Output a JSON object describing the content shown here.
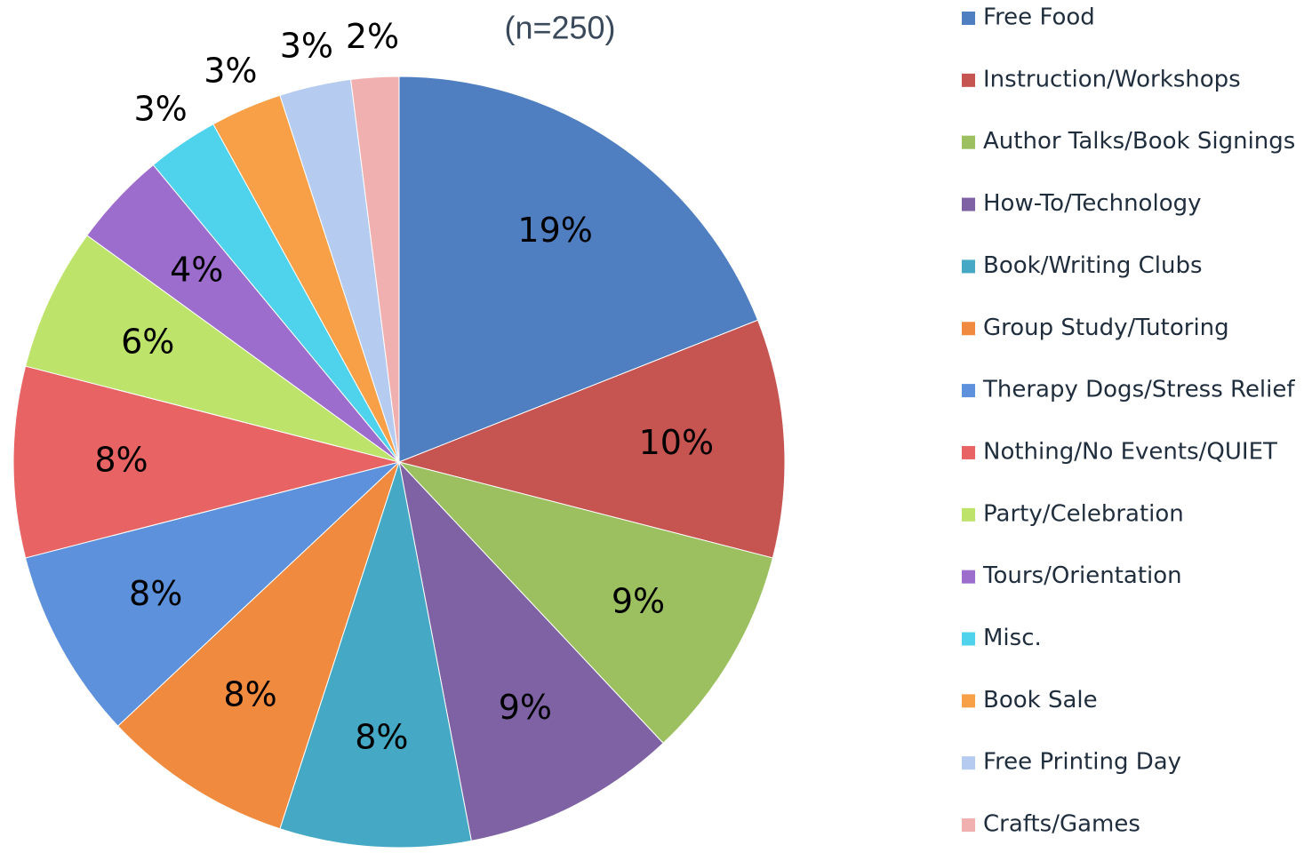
{
  "chart_data": {
    "type": "pie",
    "subtitle": "(n=250)",
    "categories": [
      "Free Food",
      "Instruction/Workshops",
      "Author Talks/Book Signings",
      "How-To/Technology",
      "Book/Writing Clubs",
      "Group Study/Tutoring",
      "Therapy Dogs/Stress Relief",
      "Nothing/No Events/QUIET",
      "Party/Celebration",
      "Tours/Orientation",
      "Misc.",
      "Book Sale",
      "Free Printing Day",
      "Crafts/Games"
    ],
    "values": [
      19,
      10,
      9,
      9,
      8,
      8,
      8,
      8,
      6,
      4,
      3,
      3,
      3,
      2
    ],
    "value_labels": [
      "19%",
      "10%",
      "9%",
      "9%",
      "8%",
      "8%",
      "8%",
      "8%",
      "6%",
      "4%",
      "3%",
      "3%",
      "3%",
      "2%"
    ],
    "colors": [
      "#4f7fc0",
      "#c65552",
      "#9cc060",
      "#7e62a4",
      "#45a8c4",
      "#f08a3e",
      "#5d91dc",
      "#e86464",
      "#bde36a",
      "#9c6dcc",
      "#4fd3ec",
      "#f8a048",
      "#b6cbf0",
      "#f0b0b0"
    ],
    "legend": "right"
  }
}
